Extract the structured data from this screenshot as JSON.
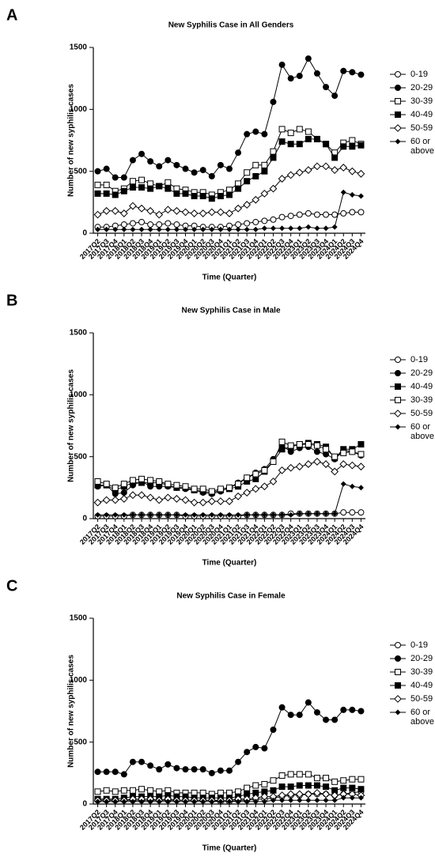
{
  "chart_data": [
    {
      "type": "line",
      "panel_label": "A",
      "title": "New Syphilis Case in All Genders",
      "x_label": "Time (Quarter)",
      "y_label": "Number of new syphilis cases",
      "categories": [
        "2017Q2",
        "2017Q3",
        "2017Q4",
        "2018Q1",
        "2018Q2",
        "2018Q3",
        "2018Q4",
        "2019Q1",
        "2019Q2",
        "2019Q3",
        "2019Q4",
        "2020Q1",
        "2020Q2",
        "2020Q3",
        "2020Q4",
        "2021Q1",
        "2021Q2",
        "2021Q3",
        "2021Q4",
        "2022Q1",
        "2022Q2",
        "2022Q3",
        "2022Q4",
        "2023Q1",
        "2023Q2",
        "2023Q3",
        "2023Q4",
        "2024Q1",
        "2024Q2",
        "2024Q3",
        "2024Q4"
      ],
      "ylim": [
        0,
        1500
      ],
      "yticks": [
        0,
        500,
        1000,
        1500
      ],
      "series": [
        {
          "name": "0-19",
          "color": "#000000",
          "marker": "circle",
          "filled": false,
          "values": [
            50,
            50,
            60,
            70,
            80,
            90,
            70,
            70,
            80,
            70,
            60,
            60,
            50,
            50,
            50,
            60,
            70,
            80,
            90,
            100,
            110,
            130,
            140,
            150,
            160,
            150,
            150,
            150,
            160,
            170,
            170
          ]
        },
        {
          "name": "20-29",
          "color": "#000000",
          "marker": "circle",
          "filled": true,
          "values": [
            500,
            520,
            450,
            450,
            590,
            640,
            580,
            540,
            590,
            550,
            520,
            490,
            510,
            460,
            550,
            520,
            650,
            800,
            820,
            800,
            1060,
            1360,
            1250,
            1270,
            1410,
            1290,
            1180,
            1110,
            1310,
            1300,
            1280
          ]
        },
        {
          "name": "30-39",
          "color": "#000000",
          "marker": "square",
          "filled": false,
          "values": [
            390,
            390,
            340,
            360,
            420,
            430,
            400,
            380,
            410,
            360,
            350,
            330,
            330,
            310,
            330,
            350,
            400,
            490,
            550,
            550,
            660,
            840,
            810,
            840,
            820,
            760,
            720,
            650,
            730,
            750,
            720
          ]
        },
        {
          "name": "40-49",
          "color": "#000000",
          "marker": "square",
          "filled": true,
          "values": [
            320,
            320,
            310,
            340,
            370,
            370,
            360,
            380,
            360,
            320,
            320,
            300,
            300,
            280,
            300,
            310,
            360,
            420,
            460,
            500,
            610,
            740,
            720,
            720,
            760,
            760,
            720,
            610,
            700,
            700,
            710
          ]
        },
        {
          "name": "50-59",
          "color": "#000000",
          "marker": "diamond",
          "filled": false,
          "values": [
            150,
            180,
            180,
            160,
            220,
            200,
            180,
            150,
            190,
            180,
            170,
            160,
            160,
            170,
            170,
            160,
            200,
            230,
            270,
            320,
            360,
            440,
            470,
            490,
            510,
            540,
            540,
            510,
            530,
            500,
            480
          ]
        },
        {
          "name": "60 or above",
          "color": "#000000",
          "marker": "small-diamond",
          "filled": true,
          "values": [
            30,
            30,
            30,
            30,
            30,
            30,
            30,
            30,
            30,
            30,
            30,
            30,
            30,
            30,
            30,
            30,
            30,
            30,
            30,
            40,
            40,
            40,
            40,
            40,
            50,
            40,
            40,
            50,
            330,
            310,
            300
          ]
        }
      ]
    },
    {
      "type": "line",
      "panel_label": "B",
      "title": "New Syphilis Case in Male",
      "x_label": "Time (Quarter)",
      "y_label": "Number of new syphilis cases",
      "categories": [
        "2017Q2",
        "2017Q3",
        "2017Q4",
        "2018Q1",
        "2018Q2",
        "2018Q3",
        "2018Q4",
        "2019Q1",
        "2019Q2",
        "2019Q3",
        "2019Q4",
        "2020Q1",
        "2020Q2",
        "2020Q3",
        "2020Q4",
        "2021Q1",
        "2021Q2",
        "2021Q3",
        "2021Q4",
        "2022Q1",
        "2022Q2",
        "2022Q3",
        "2022Q4",
        "2023Q1",
        "2023Q2",
        "2023Q3",
        "2023Q4",
        "2024Q1",
        "2024Q2",
        "2024Q3",
        "2024Q4"
      ],
      "ylim": [
        0,
        1500
      ],
      "yticks": [
        0,
        500,
        1000,
        1500
      ],
      "series": [
        {
          "name": "0-19",
          "color": "#000000",
          "marker": "circle",
          "filled": false,
          "values": [
            20,
            20,
            20,
            20,
            30,
            30,
            30,
            30,
            30,
            30,
            20,
            20,
            20,
            20,
            20,
            20,
            20,
            30,
            30,
            30,
            30,
            30,
            40,
            40,
            40,
            40,
            40,
            40,
            50,
            50,
            50
          ]
        },
        {
          "name": "20-29",
          "color": "#000000",
          "marker": "circle",
          "filled": true,
          "values": [
            260,
            270,
            200,
            210,
            270,
            300,
            260,
            260,
            260,
            250,
            240,
            230,
            210,
            200,
            220,
            250,
            290,
            330,
            370,
            400,
            480,
            590,
            540,
            570,
            580,
            540,
            520,
            480,
            550,
            540,
            510
          ]
        },
        {
          "name": "40-49",
          "color": "#000000",
          "marker": "square",
          "filled": true,
          "values": [
            270,
            270,
            230,
            260,
            290,
            290,
            290,
            290,
            270,
            250,
            250,
            230,
            220,
            210,
            230,
            240,
            260,
            300,
            320,
            380,
            460,
            560,
            580,
            600,
            610,
            600,
            580,
            490,
            560,
            560,
            600
          ]
        },
        {
          "name": "30-39",
          "color": "#000000",
          "marker": "square",
          "filled": false,
          "values": [
            300,
            280,
            250,
            280,
            310,
            320,
            310,
            300,
            280,
            270,
            260,
            240,
            240,
            220,
            240,
            250,
            280,
            330,
            360,
            390,
            460,
            620,
            590,
            600,
            600,
            590,
            560,
            500,
            530,
            540,
            520
          ]
        },
        {
          "name": "50-59",
          "color": "#000000",
          "marker": "diamond",
          "filled": false,
          "values": [
            130,
            150,
            150,
            160,
            190,
            190,
            170,
            150,
            170,
            160,
            150,
            130,
            130,
            140,
            140,
            140,
            180,
            210,
            240,
            260,
            300,
            390,
            410,
            420,
            440,
            460,
            440,
            380,
            440,
            430,
            420
          ]
        },
        {
          "name": "60 or above",
          "color": "#000000",
          "marker": "small-diamond",
          "filled": true,
          "values": [
            30,
            30,
            30,
            30,
            30,
            30,
            30,
            30,
            30,
            30,
            30,
            30,
            30,
            30,
            30,
            30,
            30,
            30,
            30,
            30,
            30,
            30,
            30,
            40,
            40,
            40,
            40,
            40,
            280,
            260,
            250
          ]
        }
      ]
    },
    {
      "type": "line",
      "panel_label": "C",
      "title": "New Syphilis Case in Female",
      "x_label": "Time (Quarter)",
      "y_label": "Number of new syphilis cases",
      "categories": [
        "2017Q2",
        "2017Q3",
        "2017Q4",
        "2018Q1",
        "2018Q2",
        "2018Q3",
        "2018Q4",
        "2019Q1",
        "2019Q2",
        "2019Q3",
        "2019Q4",
        "2020Q1",
        "2020Q2",
        "2020Q3",
        "2020Q4",
        "2021Q1",
        "2021Q2",
        "2021Q3",
        "2021Q4",
        "2022Q1",
        "2022Q2",
        "2022Q3",
        "2022Q4",
        "2023Q1",
        "2023Q2",
        "2023Q3",
        "2023Q4",
        "2024Q1",
        "2024Q2",
        "2024Q3",
        "2024Q4"
      ],
      "ylim": [
        0,
        1500
      ],
      "yticks": [
        0,
        500,
        1000,
        1500
      ],
      "series": [
        {
          "name": "0-19",
          "color": "#000000",
          "marker": "circle",
          "filled": false,
          "values": [
            30,
            30,
            30,
            30,
            30,
            30,
            30,
            30,
            30,
            30,
            30,
            30,
            30,
            30,
            20,
            20,
            30,
            30,
            40,
            40,
            50,
            60,
            70,
            70,
            80,
            80,
            80,
            70,
            80,
            90,
            100
          ]
        },
        {
          "name": "20-29",
          "color": "#000000",
          "marker": "circle",
          "filled": true,
          "values": [
            260,
            260,
            260,
            240,
            340,
            340,
            310,
            280,
            320,
            290,
            280,
            280,
            280,
            250,
            270,
            270,
            340,
            420,
            460,
            450,
            600,
            780,
            720,
            720,
            820,
            740,
            680,
            680,
            760,
            760,
            750
          ]
        },
        {
          "name": "30-39",
          "color": "#000000",
          "marker": "square",
          "filled": false,
          "values": [
            100,
            110,
            100,
            110,
            110,
            120,
            110,
            100,
            110,
            90,
            90,
            90,
            90,
            80,
            90,
            90,
            100,
            130,
            150,
            160,
            190,
            230,
            240,
            240,
            240,
            210,
            210,
            180,
            190,
            200,
            200
          ]
        },
        {
          "name": "40-49",
          "color": "#000000",
          "marker": "square",
          "filled": true,
          "values": [
            40,
            40,
            40,
            50,
            60,
            60,
            60,
            60,
            70,
            60,
            60,
            50,
            50,
            50,
            50,
            50,
            60,
            80,
            90,
            100,
            110,
            140,
            140,
            150,
            150,
            150,
            140,
            110,
            130,
            130,
            120
          ]
        },
        {
          "name": "50-59",
          "color": "#000000",
          "marker": "diamond",
          "filled": false,
          "values": [
            30,
            30,
            30,
            30,
            40,
            40,
            40,
            30,
            40,
            30,
            30,
            30,
            30,
            30,
            30,
            30,
            40,
            40,
            50,
            60,
            60,
            70,
            80,
            80,
            80,
            90,
            80,
            70,
            80,
            80,
            70
          ]
        },
        {
          "name": "60 or above",
          "color": "#000000",
          "marker": "small-diamond",
          "filled": true,
          "values": [
            20,
            20,
            20,
            20,
            20,
            20,
            20,
            20,
            20,
            20,
            20,
            20,
            20,
            20,
            20,
            20,
            20,
            20,
            20,
            20,
            30,
            30,
            30,
            30,
            30,
            30,
            30,
            30,
            50,
            50,
            50
          ]
        }
      ]
    }
  ]
}
